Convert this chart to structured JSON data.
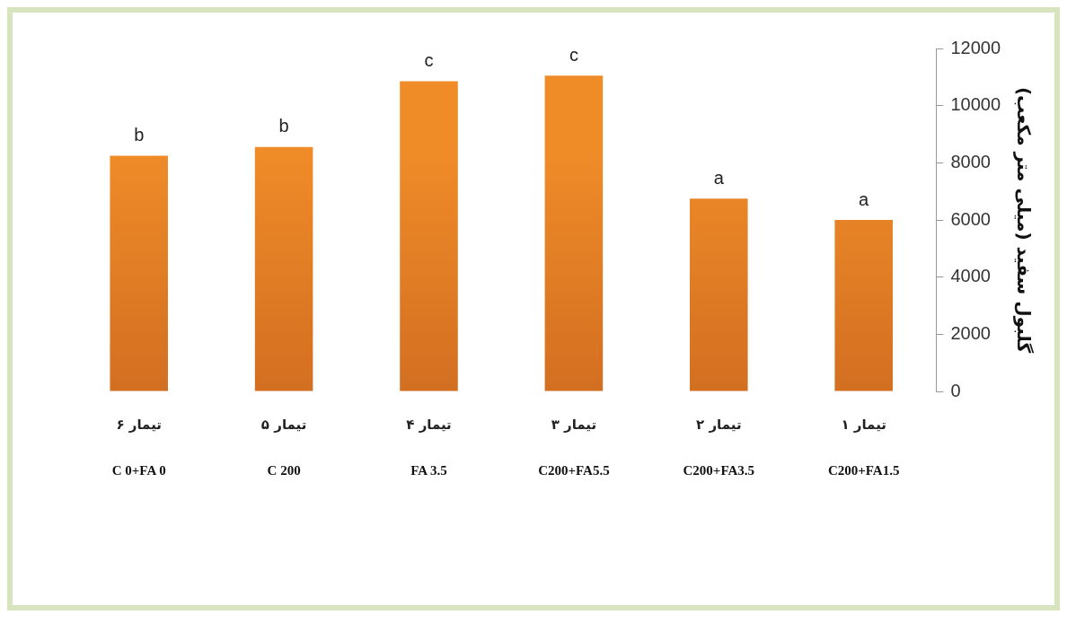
{
  "chart_data": {
    "type": "bar",
    "ylabel": "گلبول سفید (میلی متر مکعب)",
    "categories": [
      "C 0+FA 0",
      "C 200",
      "FA 3.5",
      "C200+FA5.5",
      "C200+FA3.5",
      "C200+FA1.5"
    ],
    "values": [
      8250,
      8550,
      10850,
      11050,
      6750,
      6000
    ],
    "value_labels": [
      "b",
      "b",
      "c",
      "c",
      "a",
      "a"
    ],
    "annotations": [
      "تیمار ۶",
      "تیمار ۵",
      "تیمار ۴",
      "تیمار ۳",
      "تیمار ۲",
      "تیمار ۱"
    ],
    "color": "#f08c28",
    "ylim": [
      0,
      12000
    ],
    "yticks": [
      0,
      2000,
      4000,
      6000,
      8000,
      10000,
      12000
    ],
    "grid": false,
    "legend": false
  }
}
